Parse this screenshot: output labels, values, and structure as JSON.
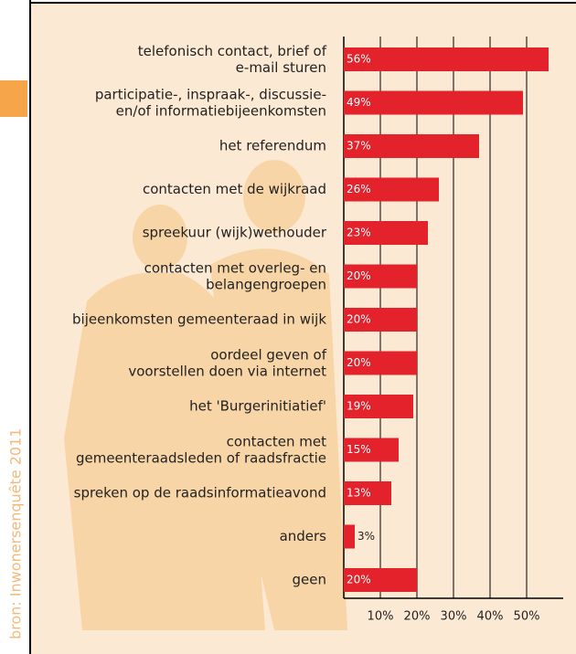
{
  "chart_data": {
    "type": "barh",
    "categories": [
      "telefonisch contact, brief of\ne-mail sturen",
      "participatie-, inspraak-, discussie-\nen/of informatiebijeenkomsten",
      "het referendum",
      "contacten met de wijkraad",
      "spreekuur (wijk)wethouder",
      "contacten met overleg- en\nbelangengroepen",
      "bijeenkomsten gemeenteraad in wijk",
      "oordeel geven of\nvoorstellen doen via internet",
      "het 'Burgerinitiatief'",
      "contacten met\ngemeenteraadsleden of raadsfractie",
      "spreken op de raadsinformatieavond",
      "anders",
      "geen"
    ],
    "values": [
      56,
      49,
      37,
      26,
      23,
      20,
      20,
      20,
      19,
      15,
      13,
      3,
      20
    ],
    "value_labels": [
      "56%",
      "49%",
      "37%",
      "26%",
      "23%",
      "20%",
      "20%",
      "20%",
      "19%",
      "15%",
      "13%",
      "3%",
      "20%"
    ],
    "color": "#e3222b",
    "xlim": [
      0,
      60
    ],
    "xticks": [
      {
        "value": 10,
        "label": "10%"
      },
      {
        "value": 20,
        "label": "20%"
      },
      {
        "value": 30,
        "label": "30%"
      },
      {
        "value": 40,
        "label": "40%"
      },
      {
        "value": 50,
        "label": "50%"
      }
    ],
    "grid": true,
    "source": "bron: Inwonersenquête 2011"
  }
}
